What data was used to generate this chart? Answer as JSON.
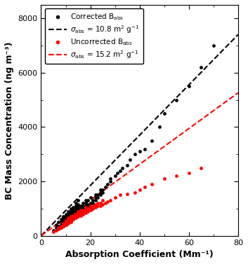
{
  "title": "",
  "xlabel": "Absorption Coefficient (Mm⁻¹)",
  "ylabel": "BC Mass Concentration (ng m⁻³)",
  "xlim": [
    0,
    80
  ],
  "ylim": [
    0,
    8500
  ],
  "xticks": [
    0,
    20,
    40,
    60,
    80
  ],
  "yticks": [
    0,
    2000,
    4000,
    6000,
    8000
  ],
  "sigma_corrected": 10.8,
  "sigma_uncorrected": 15.2,
  "corrected_color": "#000000",
  "uncorrected_color": "#ff0000",
  "legend_labels": [
    "Corrected B_abs",
    "σ_abs = 10.8 m² g⁻¹",
    "Uncorrected B_abs",
    "σ_abs = 15.2 m² g⁻¹"
  ],
  "black_x": [
    5,
    6,
    6,
    7,
    7,
    7,
    8,
    8,
    8,
    8,
    9,
    9,
    9,
    9,
    9,
    10,
    10,
    10,
    10,
    10,
    10,
    11,
    11,
    11,
    11,
    11,
    12,
    12,
    12,
    12,
    12,
    12,
    12,
    13,
    13,
    13,
    13,
    13,
    13,
    14,
    14,
    14,
    14,
    14,
    14,
    15,
    15,
    15,
    15,
    15,
    15,
    16,
    16,
    16,
    16,
    17,
    17,
    17,
    17,
    18,
    18,
    18,
    18,
    19,
    19,
    19,
    20,
    20,
    20,
    21,
    21,
    22,
    22,
    22,
    23,
    23,
    24,
    24,
    24,
    25,
    25,
    26,
    27,
    28,
    28,
    30,
    31,
    32,
    33,
    35,
    36,
    38,
    40,
    42,
    45,
    48,
    50,
    55,
    60,
    65,
    70
  ],
  "black_y": [
    200,
    300,
    400,
    250,
    350,
    500,
    300,
    400,
    500,
    600,
    350,
    450,
    550,
    650,
    700,
    400,
    500,
    600,
    700,
    750,
    800,
    500,
    600,
    700,
    800,
    900,
    550,
    650,
    750,
    850,
    900,
    950,
    1000,
    600,
    700,
    800,
    900,
    950,
    1050,
    700,
    800,
    900,
    1000,
    1100,
    1200,
    750,
    850,
    950,
    1050,
    1150,
    1300,
    800,
    900,
    1000,
    1100,
    900,
    1000,
    1100,
    1200,
    950,
    1100,
    1200,
    1300,
    1050,
    1150,
    1300,
    1100,
    1200,
    1400,
    1200,
    1300,
    1300,
    1400,
    1500,
    1400,
    1500,
    1500,
    1600,
    1700,
    1600,
    1700,
    1800,
    1900,
    2000,
    2100,
    2200,
    2300,
    2400,
    2500,
    2600,
    2800,
    3000,
    3100,
    3200,
    3500,
    4000,
    4500,
    5000,
    5500,
    6200,
    7000
  ],
  "red_x": [
    5,
    6,
    7,
    7,
    8,
    8,
    9,
    9,
    9,
    10,
    10,
    10,
    11,
    11,
    11,
    12,
    12,
    12,
    12,
    13,
    13,
    13,
    14,
    14,
    14,
    15,
    15,
    15,
    15,
    16,
    16,
    16,
    17,
    17,
    17,
    18,
    18,
    18,
    19,
    19,
    20,
    20,
    20,
    21,
    21,
    22,
    22,
    23,
    23,
    24,
    24,
    25,
    25,
    26,
    27,
    28,
    30,
    32,
    35,
    38,
    40,
    42,
    45,
    50,
    55,
    60,
    65
  ],
  "red_y": [
    150,
    200,
    250,
    300,
    300,
    350,
    350,
    400,
    450,
    400,
    500,
    550,
    450,
    550,
    650,
    500,
    600,
    650,
    700,
    600,
    700,
    750,
    650,
    750,
    800,
    700,
    800,
    850,
    900,
    750,
    850,
    950,
    800,
    900,
    950,
    850,
    950,
    1050,
    900,
    1000,
    950,
    1050,
    1100,
    1000,
    1100,
    1050,
    1150,
    1100,
    1200,
    1100,
    1200,
    1150,
    1300,
    1200,
    1250,
    1300,
    1400,
    1500,
    1550,
    1600,
    1700,
    1800,
    1900,
    2100,
    2200,
    2300,
    2500
  ]
}
